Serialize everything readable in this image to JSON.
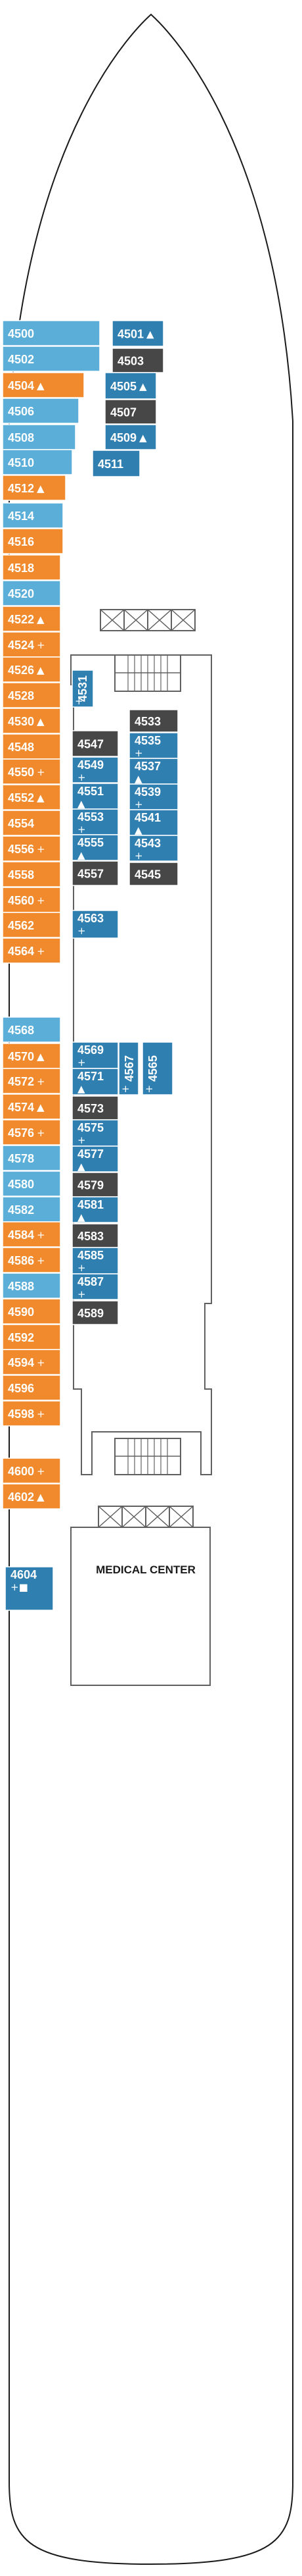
{
  "legend_colors": {
    "orange": "#f08a2c",
    "light_blue": "#5aaed8",
    "mid_blue": "#2f7fb1",
    "dark_gray": "#474747",
    "outline": "#606060"
  },
  "symbols": {
    "plus": "+",
    "triangle": "▲",
    "square": "■",
    "connecting": "↕"
  },
  "rooms": {
    "medical_center": "MEDICAL CENTER"
  },
  "cabins": {
    "c4500": {
      "number": "4500",
      "color": "light_blue"
    },
    "c4502": {
      "number": "4502",
      "color": "light_blue"
    },
    "c4504": {
      "number": "4504",
      "color": "orange",
      "sym": "triangle"
    },
    "c4506": {
      "number": "4506",
      "color": "light_blue"
    },
    "c4508": {
      "number": "4508",
      "color": "light_blue"
    },
    "c4510": {
      "number": "4510",
      "color": "light_blue"
    },
    "c4512": {
      "number": "4512",
      "color": "orange",
      "sym": "triangle"
    },
    "c4514": {
      "number": "4514",
      "color": "light_blue"
    },
    "c4516": {
      "number": "4516",
      "color": "orange"
    },
    "c4518": {
      "number": "4518",
      "color": "orange"
    },
    "c4520": {
      "number": "4520",
      "color": "light_blue"
    },
    "c4522": {
      "number": "4522",
      "color": "orange",
      "sym": "triangle"
    },
    "c4524": {
      "number": "4524",
      "color": "orange",
      "sym": "plus"
    },
    "c4526": {
      "number": "4526",
      "color": "orange",
      "sym": "triangle"
    },
    "c4528": {
      "number": "4528",
      "color": "orange"
    },
    "c4530": {
      "number": "4530",
      "color": "orange",
      "sym": "triangle"
    },
    "c4548": {
      "number": "4548",
      "color": "orange"
    },
    "c4550": {
      "number": "4550",
      "color": "orange",
      "sym": "plus"
    },
    "c4552": {
      "number": "4552",
      "color": "orange",
      "sym": "triangle"
    },
    "c4554": {
      "number": "4554",
      "color": "orange"
    },
    "c4556": {
      "number": "4556",
      "color": "orange",
      "sym": "plus"
    },
    "c4558": {
      "number": "4558",
      "color": "orange"
    },
    "c4560": {
      "number": "4560",
      "color": "orange",
      "sym": "plus"
    },
    "c4562": {
      "number": "4562",
      "color": "orange"
    },
    "c4564": {
      "number": "4564",
      "color": "orange",
      "sym": "plus"
    },
    "c4568": {
      "number": "4568",
      "color": "light_blue"
    },
    "c4570": {
      "number": "4570",
      "color": "orange",
      "sym": "triangle"
    },
    "c4572": {
      "number": "4572",
      "color": "orange",
      "sym": "plus"
    },
    "c4574": {
      "number": "4574",
      "color": "orange",
      "sym": "triangle"
    },
    "c4576": {
      "number": "4576",
      "color": "orange",
      "sym": "plus"
    },
    "c4578": {
      "number": "4578",
      "color": "light_blue"
    },
    "c4580": {
      "number": "4580",
      "color": "light_blue"
    },
    "c4582": {
      "number": "4582",
      "color": "light_blue"
    },
    "c4584": {
      "number": "4584",
      "color": "orange",
      "sym": "plus"
    },
    "c4586": {
      "number": "4586",
      "color": "orange",
      "sym": "plus"
    },
    "c4588": {
      "number": "4588",
      "color": "light_blue"
    },
    "c4590": {
      "number": "4590",
      "color": "orange"
    },
    "c4592": {
      "number": "4592",
      "color": "orange"
    },
    "c4594": {
      "number": "4594",
      "color": "orange",
      "sym": "plus"
    },
    "c4596": {
      "number": "4596",
      "color": "orange"
    },
    "c4598": {
      "number": "4598",
      "color": "orange",
      "sym": "plus"
    },
    "c4600": {
      "number": "4600",
      "color": "orange",
      "sym": "plus"
    },
    "c4602": {
      "number": "4602",
      "color": "orange",
      "sym": "triangle"
    },
    "c4604": {
      "number": "4604",
      "color": "mid_blue",
      "sym": "plus_square"
    },
    "c4501": {
      "number": "4501",
      "color": "mid_blue",
      "sym": "triangle"
    },
    "c4503": {
      "number": "4503",
      "color": "dark_gray"
    },
    "c4505": {
      "number": "4505",
      "color": "mid_blue",
      "sym": "triangle"
    },
    "c4507": {
      "number": "4507",
      "color": "dark_gray"
    },
    "c4509": {
      "number": "4509",
      "color": "mid_blue",
      "sym": "triangle"
    },
    "c4511": {
      "number": "4511",
      "color": "mid_blue"
    },
    "c4531": {
      "number": "4531",
      "color": "mid_blue",
      "sym": "plus"
    },
    "c4533": {
      "number": "4533",
      "color": "dark_gray"
    },
    "c4535": {
      "number": "4535",
      "color": "mid_blue",
      "sym": "plus"
    },
    "c4537": {
      "number": "4537",
      "color": "mid_blue",
      "sym": "triangle"
    },
    "c4539": {
      "number": "4539",
      "color": "mid_blue",
      "sym": "plus"
    },
    "c4541": {
      "number": "4541",
      "color": "mid_blue",
      "sym": "triangle"
    },
    "c4543": {
      "number": "4543",
      "color": "mid_blue",
      "sym": "plus"
    },
    "c4545": {
      "number": "4545",
      "color": "dark_gray"
    },
    "c4547": {
      "number": "4547",
      "color": "dark_gray"
    },
    "c4549": {
      "number": "4549",
      "color": "mid_blue",
      "sym": "plus"
    },
    "c4551": {
      "number": "4551",
      "color": "mid_blue",
      "sym": "triangle"
    },
    "c4553": {
      "number": "4553",
      "color": "mid_blue",
      "sym": "plus"
    },
    "c4555": {
      "number": "4555",
      "color": "mid_blue",
      "sym": "triangle"
    },
    "c4557": {
      "number": "4557",
      "color": "dark_gray"
    },
    "c4563": {
      "number": "4563",
      "color": "mid_blue",
      "sym": "plus"
    },
    "c4565": {
      "number": "4565",
      "color": "mid_blue",
      "sym": "plus"
    },
    "c4567": {
      "number": "4567",
      "color": "mid_blue",
      "sym": "plus"
    },
    "c4569": {
      "number": "4569",
      "color": "mid_blue",
      "sym": "plus"
    },
    "c4571": {
      "number": "4571",
      "color": "mid_blue",
      "sym": "triangle"
    },
    "c4573": {
      "number": "4573",
      "color": "dark_gray"
    },
    "c4575": {
      "number": "4575",
      "color": "mid_blue",
      "sym": "plus"
    },
    "c4577": {
      "number": "4577",
      "color": "mid_blue",
      "sym": "triangle"
    },
    "c4579": {
      "number": "4579",
      "color": "dark_gray"
    },
    "c4581": {
      "number": "4581",
      "color": "mid_blue",
      "sym": "triangle"
    },
    "c4583": {
      "number": "4583",
      "color": "dark_gray"
    },
    "c4585": {
      "number": "4585",
      "color": "mid_blue",
      "sym": "plus"
    },
    "c4587": {
      "number": "4587",
      "color": "mid_blue",
      "sym": "plus"
    },
    "c4589": {
      "number": "4589",
      "color": "dark_gray"
    }
  }
}
